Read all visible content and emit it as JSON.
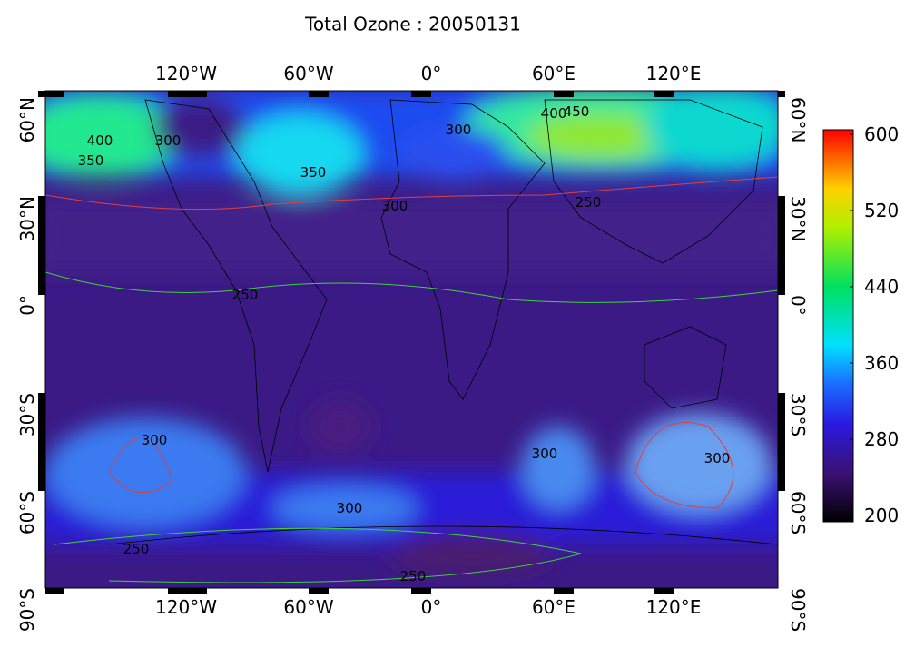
{
  "title": "Total Ozone : 20050131",
  "longitude_labels": [
    "120°W",
    "60°W",
    "0°",
    "60°E",
    "120°E"
  ],
  "latitude_labels": [
    "60°N",
    "30°N",
    "0°",
    "30°S",
    "60°S",
    "90°S"
  ],
  "colorbar": {
    "lim": [
      200,
      600
    ],
    "ticks": [
      200,
      280,
      360,
      440,
      520,
      600
    ]
  },
  "contour_labels": [
    "400",
    "350",
    "300",
    "350",
    "300",
    "300",
    "400",
    "450",
    "250",
    "250",
    "300",
    "300",
    "300",
    "300",
    "250",
    "250"
  ]
}
